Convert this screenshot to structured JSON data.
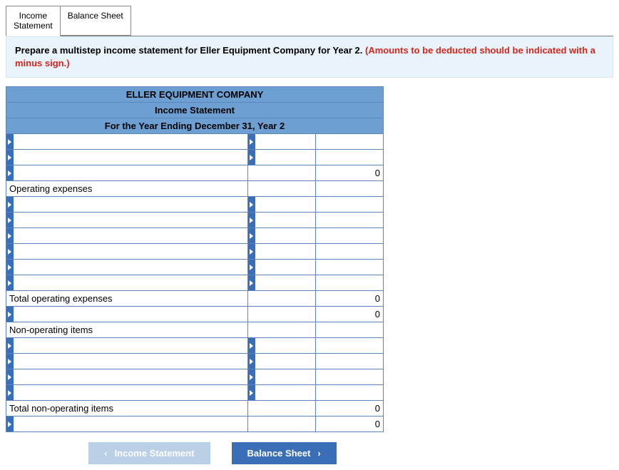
{
  "tabs": {
    "income_statement": "Income\nStatement",
    "balance_sheet": "Balance Sheet"
  },
  "prompt": {
    "text": "Prepare a multistep income statement for Eller Equipment Company for Year 2. ",
    "hint": "(Amounts to be deducted should be indicated with a minus sign.)"
  },
  "header": {
    "company": "ELLER EQUIPMENT COMPANY",
    "title": "Income Statement",
    "period": "For the Year Ending December 31, Year 2"
  },
  "sections": {
    "operating_expenses": "Operating expenses",
    "total_operating_expenses": "Total operating expenses",
    "non_operating_items": "Non-operating items",
    "total_non_operating_items": "Total non-operating items"
  },
  "values": {
    "zero": "0"
  },
  "nav": {
    "prev": "Income Statement",
    "next": "Balance Sheet"
  },
  "colors": {
    "header_bg": "#6d9fd2",
    "border": "#5b85bd",
    "arrow_bg": "#3a6fb7",
    "prompt_bg": "#e8f3fb",
    "hint_color": "#d7261c",
    "nav_disabled_bg": "#b9d0e6",
    "nav_primary_bg": "#3a6fb7"
  }
}
